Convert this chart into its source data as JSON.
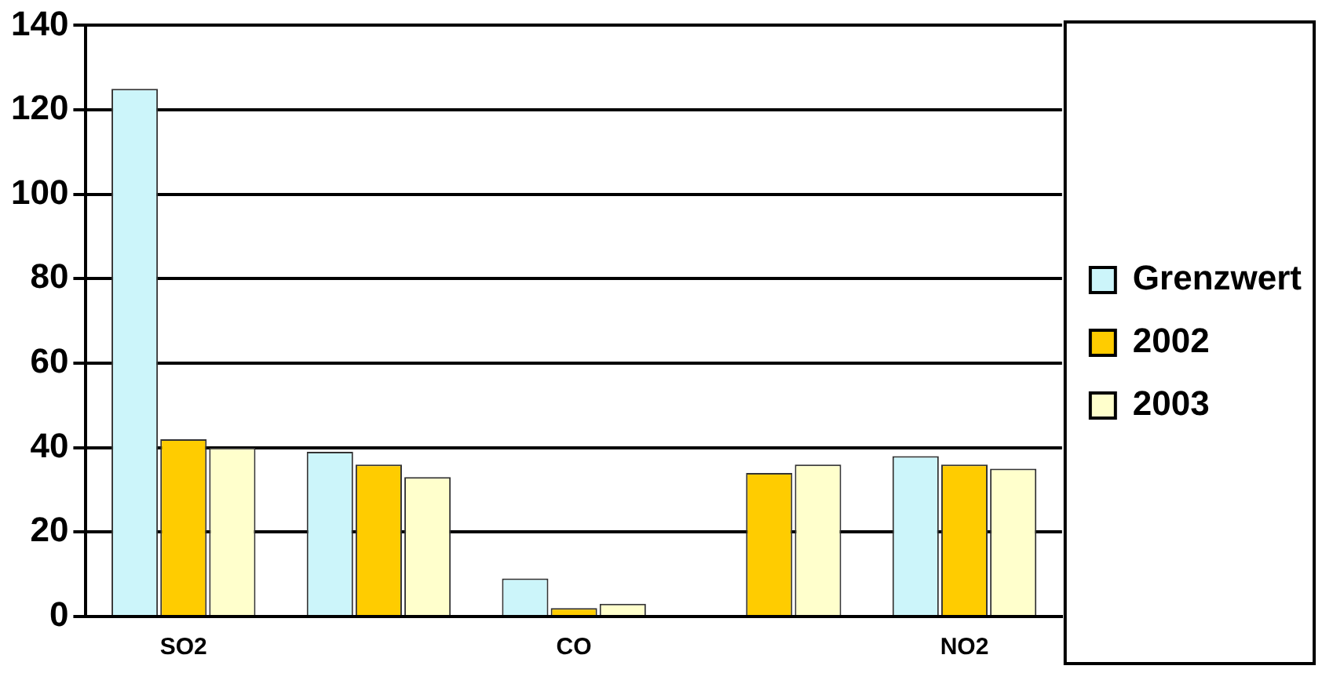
{
  "chart_data": {
    "type": "bar",
    "categories": [
      "SO2",
      null,
      "CO",
      null,
      "NO2"
    ],
    "series": [
      {
        "name": "Grenzwert",
        "color": "#ccf5fa",
        "values": [
          125,
          39,
          9,
          null,
          38
        ]
      },
      {
        "name": "2002",
        "color": "#ffcc00",
        "values": [
          42,
          36,
          2,
          34,
          36
        ]
      },
      {
        "name": "2003",
        "color": "#ffffcc",
        "values": [
          40,
          33,
          3,
          36,
          35
        ]
      }
    ],
    "ylim": [
      0,
      140
    ],
    "yticks": [
      0,
      20,
      40,
      60,
      80,
      100,
      120,
      140
    ],
    "grid": "y",
    "legend": "right"
  }
}
